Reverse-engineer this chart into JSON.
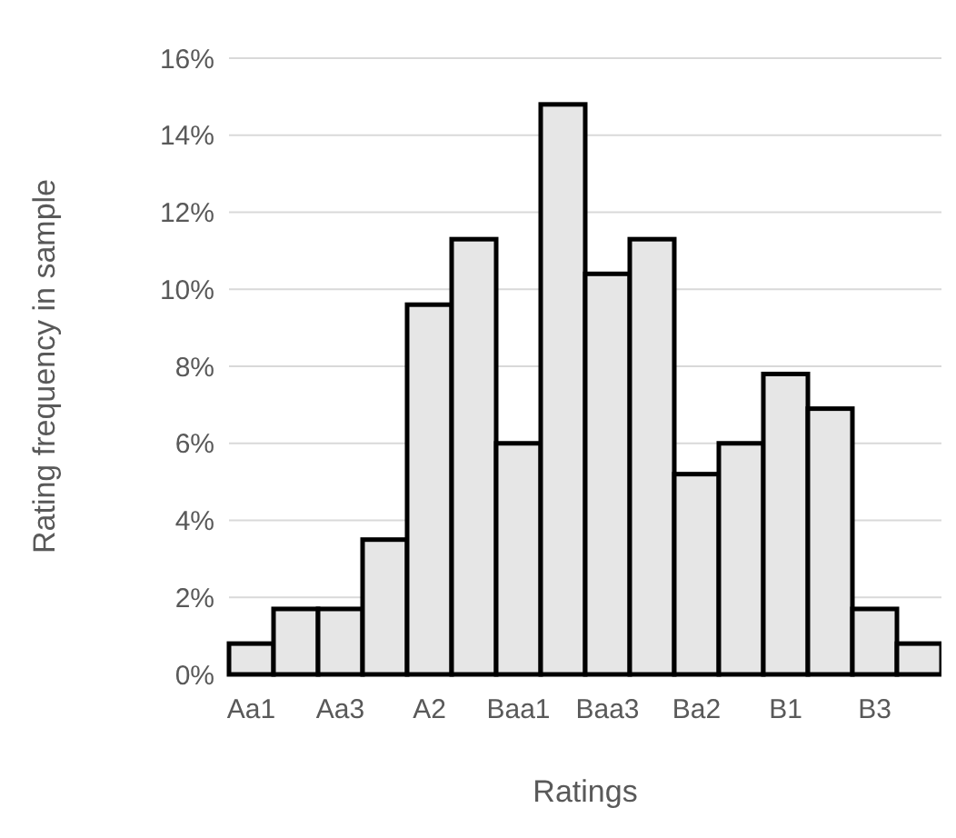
{
  "chart_data": {
    "type": "bar",
    "xlabel": "Ratings",
    "ylabel": "Rating frequency in sample",
    "categories": [
      "Aa1",
      null,
      "Aa3",
      null,
      "A2",
      null,
      "Baa1",
      null,
      "Baa3",
      null,
      "Ba2",
      null,
      "B1",
      null,
      "B3",
      null
    ],
    "values": [
      0.8,
      1.7,
      1.7,
      3.5,
      9.6,
      11.3,
      6.0,
      14.8,
      10.4,
      11.3,
      5.2,
      6.0,
      7.8,
      6.9,
      1.7,
      0.8
    ],
    "color": "#e6e6e6",
    "ylim": [
      0,
      16
    ],
    "yticks": [
      {
        "value": 0,
        "label": "0%"
      },
      {
        "value": 2,
        "label": "2%"
      },
      {
        "value": 4,
        "label": "4%"
      },
      {
        "value": 6,
        "label": "6%"
      },
      {
        "value": 8,
        "label": "8%"
      },
      {
        "value": 10,
        "label": "10%"
      },
      {
        "value": 12,
        "label": "12%"
      },
      {
        "value": 14,
        "label": "14%"
      },
      {
        "value": 16,
        "label": "16%"
      }
    ],
    "grid": "y"
  }
}
